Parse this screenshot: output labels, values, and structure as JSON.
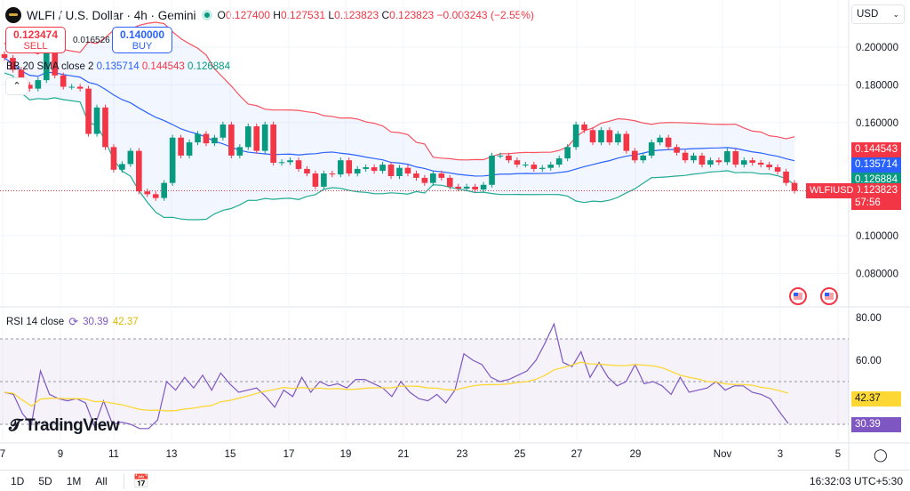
{
  "header": {
    "symbol": "WLFI / U.S. Dollar · 4h · Gemini",
    "ohlc": [
      {
        "k": "O",
        "v": "0.127400"
      },
      {
        "k": "H",
        "v": "0.127531"
      },
      {
        "k": "L",
        "v": "0.123823"
      },
      {
        "k": "C",
        "v": "0.123823"
      }
    ],
    "change": "−0.003243 (−2.55%)"
  },
  "trade": {
    "sell_price": "0.123474",
    "sell_label": "SELL",
    "spread": "0.016526",
    "buy_price": "0.140000",
    "buy_label": "BUY"
  },
  "bb": {
    "label": "BB 20 SMA close 2",
    "basis": "0.135714",
    "upper": "0.144543",
    "lower": "0.126884"
  },
  "currency": "USD",
  "price_axis": [
    "0.200000",
    "0.180000",
    "0.160000",
    "0.100000",
    "0.080000"
  ],
  "price_axis_values": [
    0.2,
    0.18,
    0.16,
    0.1,
    0.08
  ],
  "tags": {
    "upper": "0.144543",
    "basis": "0.135714",
    "lower": "0.126884",
    "last": "0.123823",
    "countdown": "57:56",
    "symbol": "WLFIUSD"
  },
  "rsi": {
    "label": "RSI 14 close",
    "value": "30.39",
    "ma": "42.37",
    "axis": [
      "80.00",
      "60.00"
    ]
  },
  "time_axis": [
    "7",
    "9",
    "11",
    "13",
    "15",
    "17",
    "19",
    "21",
    "23",
    "25",
    "27",
    "29",
    "Nov",
    "3",
    "5"
  ],
  "bottom": {
    "ranges": [
      "1D",
      "5D",
      "1M",
      "All"
    ],
    "clock": "16:32:03 UTC+5:30"
  },
  "brand": "TradingView",
  "colors": {
    "up": "#089981",
    "down": "#f23645",
    "bb_basis": "#2962ff",
    "bb_upper": "#f7525f",
    "bb_lower": "#22ab94",
    "rsi": "#7e57c2",
    "rsi_ma": "#fdd835"
  },
  "chart_data": {
    "type": "candlestick",
    "closes": [
      0.1943,
      0.188,
      0.18,
      0.178,
      0.1825,
      0.197,
      0.185,
      0.179,
      0.179,
      0.178,
      0.154,
      0.168,
      0.147,
      0.135,
      0.138,
      0.145,
      0.1235,
      0.122,
      0.12,
      0.128,
      0.152,
      0.1425,
      0.1495,
      0.154,
      0.149,
      0.152,
      0.159,
      0.1425,
      0.147,
      0.158,
      0.145,
      0.159,
      0.1387,
      0.139,
      0.14,
      0.1354,
      0.133,
      0.126,
      0.133,
      0.1325,
      0.14,
      0.133,
      0.1354,
      0.1363,
      0.1344,
      0.1377,
      0.1316,
      0.136,
      0.133,
      0.1307,
      0.128,
      0.133,
      0.1307,
      0.126,
      0.125,
      0.126,
      0.1245,
      0.127,
      0.1425,
      0.1425,
      0.14,
      0.1377,
      0.1377,
      0.1354,
      0.136,
      0.1377,
      0.141,
      0.147,
      0.159,
      0.156,
      0.1495,
      0.156,
      0.1495,
      0.154,
      0.145,
      0.14,
      0.1425,
      0.1495,
      0.152,
      0.147,
      0.144,
      0.14,
      0.1425,
      0.1377,
      0.14,
      0.139,
      0.1448,
      0.1377,
      0.14,
      0.1387,
      0.1377,
      0.1363,
      0.134,
      0.128,
      0.123823
    ],
    "rsi_values": [
      45,
      44,
      35,
      30,
      55,
      44,
      42,
      41,
      42,
      40,
      29,
      41,
      30,
      31,
      30,
      28,
      28,
      32,
      50,
      46,
      52,
      47,
      53,
      46,
      54,
      49,
      45,
      46,
      47,
      43,
      38,
      46,
      43,
      52,
      45,
      50,
      48,
      49,
      47,
      51,
      51,
      49,
      47,
      43,
      50,
      45,
      42,
      41,
      44,
      40,
      46,
      63,
      60,
      58,
      52,
      50,
      51,
      53,
      55,
      60,
      68,
      77,
      59,
      57,
      64,
      52,
      59,
      52,
      48,
      50,
      58,
      49,
      50,
      48,
      44,
      52,
      45,
      46,
      47,
      50,
      46,
      48,
      48,
      45,
      44,
      42,
      36,
      30.39
    ],
    "price_range": [
      0.07,
      0.21
    ],
    "rsi_range": [
      25,
      82
    ],
    "rsi_bands": [
      70,
      50,
      30
    ]
  }
}
